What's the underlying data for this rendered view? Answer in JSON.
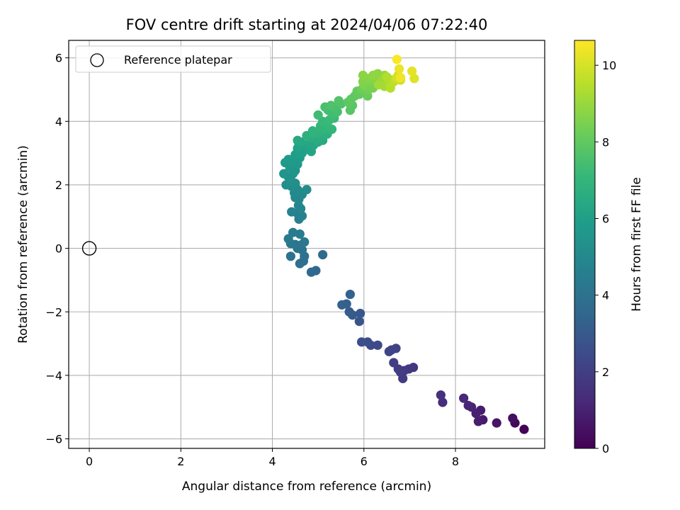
{
  "chart_data": {
    "type": "scatter",
    "title": "FOV centre drift starting at 2024/04/06 07:22:40",
    "xlabel": "Angular distance from reference (arcmin)",
    "ylabel": "Rotation from reference (arcmin)",
    "xlim": [
      -0.45,
      9.95
    ],
    "ylim": [
      -6.3,
      6.55
    ],
    "xticks": [
      0,
      2,
      4,
      6,
      8
    ],
    "yticks": [
      -6,
      -4,
      -2,
      0,
      2,
      4,
      6
    ],
    "grid": true,
    "legend": {
      "position": "top-left",
      "entries": [
        "Reference platepar"
      ]
    },
    "reference_point": {
      "x": 0,
      "y": 0,
      "marker": "open-circle",
      "color": "#000000"
    },
    "colorbar": {
      "label": "Hours from first FF file",
      "min": 0,
      "max": 10.65,
      "ticks": [
        0,
        2,
        4,
        6,
        8,
        10
      ],
      "colormap": "viridis"
    },
    "series": [
      {
        "points": [
          [
            9.5,
            -5.7,
            0.05
          ],
          [
            9.3,
            -5.5,
            0.25
          ],
          [
            9.25,
            -5.35,
            0.4
          ],
          [
            8.9,
            -5.5,
            0.6
          ],
          [
            8.6,
            -5.4,
            0.75
          ],
          [
            8.55,
            -5.1,
            0.85
          ],
          [
            8.5,
            -5.45,
            0.9
          ],
          [
            8.45,
            -5.2,
            0.95
          ],
          [
            8.35,
            -5.0,
            1.05
          ],
          [
            8.28,
            -4.95,
            1.1
          ],
          [
            8.18,
            -4.72,
            1.2
          ],
          [
            7.72,
            -4.85,
            1.4
          ],
          [
            7.68,
            -4.62,
            1.5
          ],
          [
            7.08,
            -3.75,
            1.7
          ],
          [
            6.98,
            -3.8,
            1.75
          ],
          [
            6.88,
            -3.85,
            1.8
          ],
          [
            6.85,
            -4.1,
            1.85
          ],
          [
            6.8,
            -3.9,
            1.9
          ],
          [
            6.75,
            -3.8,
            1.95
          ],
          [
            6.65,
            -3.6,
            2.0
          ],
          [
            6.7,
            -3.15,
            2.1
          ],
          [
            6.6,
            -3.2,
            2.15
          ],
          [
            6.55,
            -3.25,
            2.2
          ],
          [
            6.3,
            -3.05,
            2.35
          ],
          [
            6.15,
            -3.05,
            2.45
          ],
          [
            6.08,
            -2.95,
            2.55
          ],
          [
            5.95,
            -2.95,
            2.6
          ],
          [
            5.9,
            -2.3,
            2.8
          ],
          [
            5.92,
            -2.05,
            2.9
          ],
          [
            5.75,
            -2.1,
            3.0
          ],
          [
            5.68,
            -2.0,
            3.1
          ],
          [
            5.62,
            -1.75,
            3.2
          ],
          [
            5.52,
            -1.78,
            3.3
          ],
          [
            5.7,
            -1.45,
            3.35
          ],
          [
            4.95,
            -0.7,
            3.6
          ],
          [
            4.85,
            -0.75,
            3.65
          ],
          [
            5.1,
            -0.2,
            3.7
          ],
          [
            4.68,
            -0.4,
            3.85
          ],
          [
            4.6,
            -0.48,
            3.9
          ],
          [
            4.7,
            -0.25,
            3.95
          ],
          [
            4.4,
            -0.25,
            4.0
          ],
          [
            4.65,
            -0.05,
            4.05
          ],
          [
            4.55,
            0.0,
            4.1
          ],
          [
            4.62,
            0.1,
            4.15
          ],
          [
            4.5,
            0.12,
            4.2
          ],
          [
            4.7,
            0.2,
            4.25
          ],
          [
            4.4,
            0.15,
            4.3
          ],
          [
            4.35,
            0.3,
            4.35
          ],
          [
            4.6,
            0.45,
            4.4
          ],
          [
            4.45,
            0.5,
            4.45
          ],
          [
            4.58,
            0.92,
            4.6
          ],
          [
            4.65,
            1.02,
            4.65
          ],
          [
            4.55,
            1.1,
            4.7
          ],
          [
            4.42,
            1.15,
            4.75
          ],
          [
            4.62,
            1.25,
            4.8
          ],
          [
            4.57,
            1.35,
            4.85
          ],
          [
            4.58,
            1.55,
            4.9
          ],
          [
            4.5,
            1.6,
            4.95
          ],
          [
            4.65,
            1.7,
            5.0
          ],
          [
            4.48,
            1.75,
            5.05
          ],
          [
            4.55,
            1.85,
            5.1
          ],
          [
            4.75,
            1.85,
            5.15
          ],
          [
            4.42,
            1.95,
            5.2
          ],
          [
            4.3,
            2.0,
            5.25
          ],
          [
            4.5,
            2.05,
            5.3
          ],
          [
            4.4,
            2.15,
            5.35
          ],
          [
            4.35,
            2.25,
            5.4
          ],
          [
            4.45,
            2.35,
            5.45
          ],
          [
            4.25,
            2.35,
            5.5
          ],
          [
            4.5,
            2.45,
            5.55
          ],
          [
            4.38,
            2.55,
            5.6
          ],
          [
            4.55,
            2.65,
            5.65
          ],
          [
            4.28,
            2.7,
            5.7
          ],
          [
            4.42,
            2.75,
            5.75
          ],
          [
            4.35,
            2.8,
            5.8
          ],
          [
            4.6,
            2.85,
            5.85
          ],
          [
            4.5,
            2.95,
            5.9
          ],
          [
            4.65,
            3.0,
            5.95
          ],
          [
            4.7,
            3.1,
            6.0
          ],
          [
            4.55,
            3.15,
            6.05
          ],
          [
            4.75,
            3.2,
            6.1
          ],
          [
            4.58,
            3.25,
            6.15
          ],
          [
            4.85,
            3.05,
            6.2
          ],
          [
            4.9,
            3.25,
            6.25
          ],
          [
            4.8,
            3.3,
            6.3
          ],
          [
            4.62,
            3.35,
            6.35
          ],
          [
            4.55,
            3.4,
            6.4
          ],
          [
            5.0,
            3.35,
            6.45
          ],
          [
            5.1,
            3.4,
            6.5
          ],
          [
            4.95,
            3.45,
            6.55
          ],
          [
            4.82,
            3.5,
            6.6
          ],
          [
            5.05,
            3.55,
            6.65
          ],
          [
            4.75,
            3.55,
            6.7
          ],
          [
            5.2,
            3.6,
            6.75
          ],
          [
            4.9,
            3.6,
            6.8
          ],
          [
            5.0,
            3.65,
            6.85
          ],
          [
            4.88,
            3.7,
            6.9
          ],
          [
            5.12,
            3.75,
            6.95
          ],
          [
            5.05,
            3.85,
            7.0
          ],
          [
            5.3,
            3.75,
            7.05
          ],
          [
            5.2,
            3.9,
            7.1
          ],
          [
            5.1,
            4.0,
            7.15
          ],
          [
            5.25,
            4.05,
            7.2
          ],
          [
            5.35,
            4.1,
            7.25
          ],
          [
            5.0,
            4.2,
            7.3
          ],
          [
            5.3,
            4.25,
            7.35
          ],
          [
            5.22,
            4.35,
            7.4
          ],
          [
            5.42,
            4.3,
            7.45
          ],
          [
            5.15,
            4.45,
            7.5
          ],
          [
            5.35,
            4.45,
            7.55
          ],
          [
            5.28,
            4.5,
            7.6
          ],
          [
            5.5,
            4.55,
            7.65
          ],
          [
            5.45,
            4.65,
            7.7
          ],
          [
            5.7,
            4.35,
            7.8
          ],
          [
            5.75,
            4.5,
            7.85
          ],
          [
            5.65,
            4.6,
            7.9
          ],
          [
            5.72,
            4.7,
            7.95
          ],
          [
            5.8,
            4.8,
            8.0
          ],
          [
            5.9,
            4.85,
            8.05
          ],
          [
            5.85,
            4.95,
            8.1
          ],
          [
            6.08,
            4.8,
            8.15
          ],
          [
            5.95,
            5.0,
            8.25
          ],
          [
            6.1,
            5.0,
            8.35
          ],
          [
            6.05,
            5.1,
            8.4
          ],
          [
            6.2,
            5.05,
            8.45
          ],
          [
            6.0,
            5.15,
            8.5
          ],
          [
            6.15,
            5.25,
            8.55
          ],
          [
            5.98,
            5.25,
            8.6
          ],
          [
            6.25,
            5.3,
            8.65
          ],
          [
            6.1,
            5.35,
            8.7
          ],
          [
            5.98,
            5.45,
            8.75
          ],
          [
            6.3,
            5.5,
            8.8
          ],
          [
            6.2,
            5.45,
            8.85
          ],
          [
            6.45,
            5.45,
            8.95
          ],
          [
            6.35,
            5.2,
            9.0
          ],
          [
            6.4,
            5.3,
            9.05
          ],
          [
            6.5,
            5.35,
            9.1
          ],
          [
            6.32,
            5.15,
            9.15
          ],
          [
            6.45,
            5.1,
            9.2
          ],
          [
            6.55,
            5.2,
            9.3
          ],
          [
            6.6,
            5.3,
            9.35
          ],
          [
            6.5,
            5.4,
            9.4
          ],
          [
            6.58,
            5.05,
            9.5
          ],
          [
            6.65,
            5.25,
            9.6
          ],
          [
            6.7,
            5.35,
            9.7
          ],
          [
            6.75,
            5.45,
            9.8
          ],
          [
            6.8,
            5.3,
            9.85
          ],
          [
            6.72,
            5.38,
            9.95
          ],
          [
            7.1,
            5.35,
            10.1
          ],
          [
            7.05,
            5.58,
            10.2
          ],
          [
            6.77,
            5.65,
            10.35
          ],
          [
            6.8,
            5.38,
            10.45
          ],
          [
            6.72,
            5.95,
            10.6
          ]
        ]
      }
    ]
  },
  "colors": {
    "viridis": [
      "#440154",
      "#482878",
      "#3e4989",
      "#31688e",
      "#26828e",
      "#1f9e89",
      "#35b779",
      "#6ece58",
      "#b5de2b",
      "#fde725"
    ],
    "grid": "#b0b0b0",
    "axis": "#000000",
    "legend_border": "#cccccc"
  }
}
